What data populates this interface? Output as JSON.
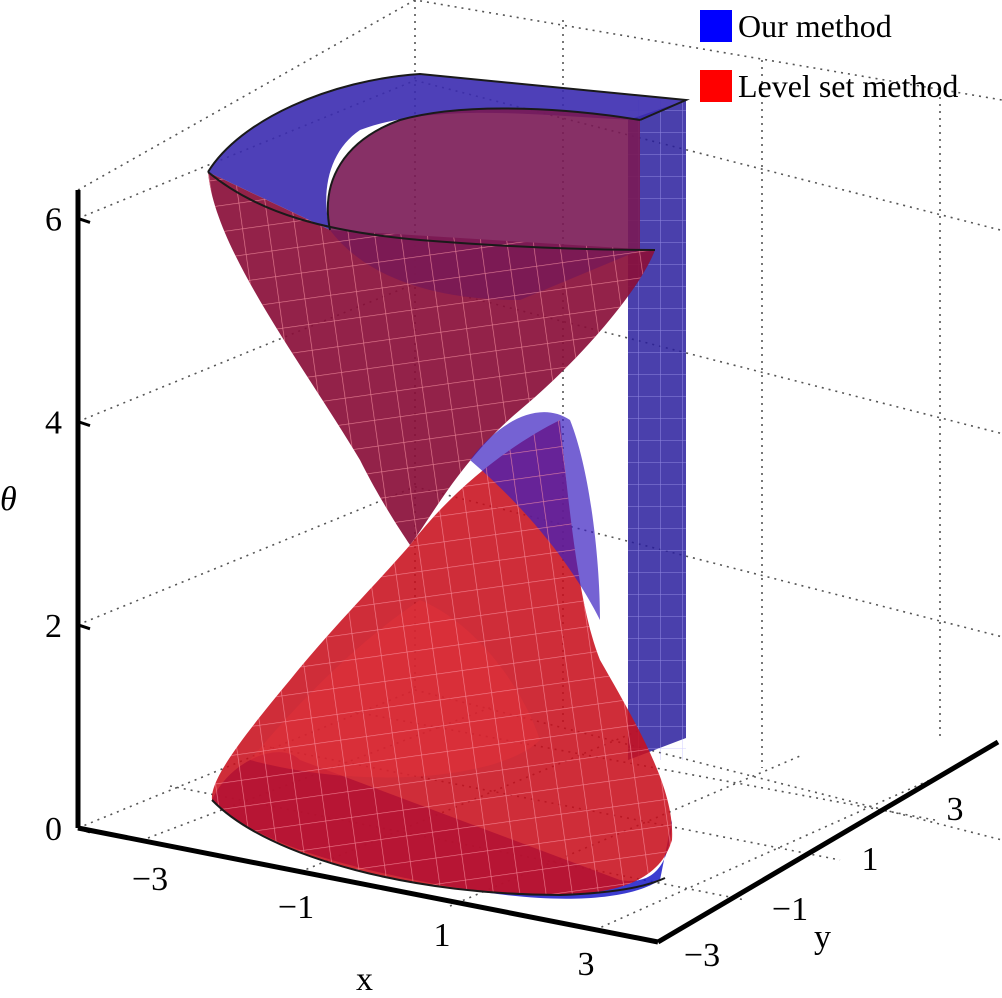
{
  "chart_data": {
    "type": "surface3d",
    "title": "",
    "xlabel": "x",
    "ylabel": "y",
    "zlabel": "θ",
    "x_ticks": [
      "−3",
      "−1",
      "1",
      "3"
    ],
    "y_ticks": [
      "−3",
      "−1",
      "1",
      "3"
    ],
    "z_ticks": [
      "0",
      "2",
      "4",
      "6"
    ],
    "zlim": [
      0,
      6.28
    ],
    "grid": true,
    "legend_position": "top-right",
    "series": [
      {
        "name": "Our method",
        "color": "#0000ff"
      },
      {
        "name": "Level set method",
        "color": "#ff0000"
      }
    ]
  }
}
